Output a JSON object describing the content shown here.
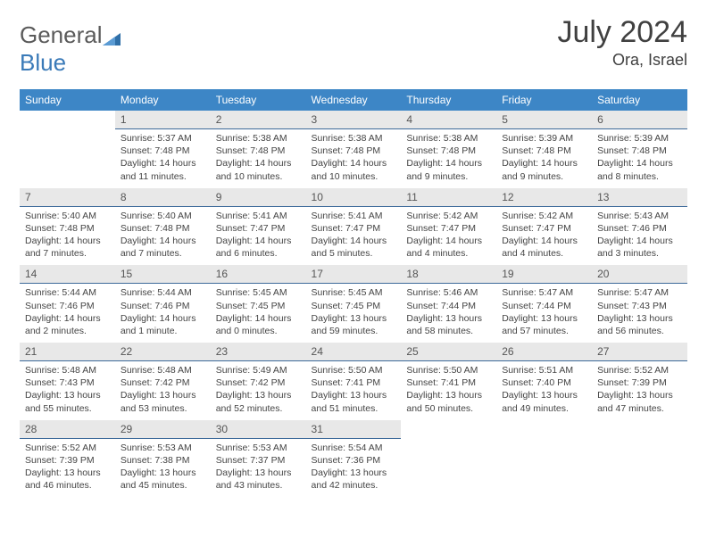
{
  "brand": {
    "part1": "General",
    "part2": "Blue"
  },
  "title": "July 2024",
  "location": "Ora, Israel",
  "day_headers": [
    "Sunday",
    "Monday",
    "Tuesday",
    "Wednesday",
    "Thursday",
    "Friday",
    "Saturday"
  ],
  "colors": {
    "header_bg": "#3d86c6",
    "header_text": "#ffffff",
    "daynum_bg": "#e8e8e8",
    "daynum_border": "#3d6a9a",
    "text": "#444444",
    "title_text": "#404040"
  },
  "start_offset": 1,
  "days": [
    {
      "n": "1",
      "sunrise": "5:37 AM",
      "sunset": "7:48 PM",
      "daylight": "14 hours and 11 minutes."
    },
    {
      "n": "2",
      "sunrise": "5:38 AM",
      "sunset": "7:48 PM",
      "daylight": "14 hours and 10 minutes."
    },
    {
      "n": "3",
      "sunrise": "5:38 AM",
      "sunset": "7:48 PM",
      "daylight": "14 hours and 10 minutes."
    },
    {
      "n": "4",
      "sunrise": "5:38 AM",
      "sunset": "7:48 PM",
      "daylight": "14 hours and 9 minutes."
    },
    {
      "n": "5",
      "sunrise": "5:39 AM",
      "sunset": "7:48 PM",
      "daylight": "14 hours and 9 minutes."
    },
    {
      "n": "6",
      "sunrise": "5:39 AM",
      "sunset": "7:48 PM",
      "daylight": "14 hours and 8 minutes."
    },
    {
      "n": "7",
      "sunrise": "5:40 AM",
      "sunset": "7:48 PM",
      "daylight": "14 hours and 7 minutes."
    },
    {
      "n": "8",
      "sunrise": "5:40 AM",
      "sunset": "7:48 PM",
      "daylight": "14 hours and 7 minutes."
    },
    {
      "n": "9",
      "sunrise": "5:41 AM",
      "sunset": "7:47 PM",
      "daylight": "14 hours and 6 minutes."
    },
    {
      "n": "10",
      "sunrise": "5:41 AM",
      "sunset": "7:47 PM",
      "daylight": "14 hours and 5 minutes."
    },
    {
      "n": "11",
      "sunrise": "5:42 AM",
      "sunset": "7:47 PM",
      "daylight": "14 hours and 4 minutes."
    },
    {
      "n": "12",
      "sunrise": "5:42 AM",
      "sunset": "7:47 PM",
      "daylight": "14 hours and 4 minutes."
    },
    {
      "n": "13",
      "sunrise": "5:43 AM",
      "sunset": "7:46 PM",
      "daylight": "14 hours and 3 minutes."
    },
    {
      "n": "14",
      "sunrise": "5:44 AM",
      "sunset": "7:46 PM",
      "daylight": "14 hours and 2 minutes."
    },
    {
      "n": "15",
      "sunrise": "5:44 AM",
      "sunset": "7:46 PM",
      "daylight": "14 hours and 1 minute."
    },
    {
      "n": "16",
      "sunrise": "5:45 AM",
      "sunset": "7:45 PM",
      "daylight": "14 hours and 0 minutes."
    },
    {
      "n": "17",
      "sunrise": "5:45 AM",
      "sunset": "7:45 PM",
      "daylight": "13 hours and 59 minutes."
    },
    {
      "n": "18",
      "sunrise": "5:46 AM",
      "sunset": "7:44 PM",
      "daylight": "13 hours and 58 minutes."
    },
    {
      "n": "19",
      "sunrise": "5:47 AM",
      "sunset": "7:44 PM",
      "daylight": "13 hours and 57 minutes."
    },
    {
      "n": "20",
      "sunrise": "5:47 AM",
      "sunset": "7:43 PM",
      "daylight": "13 hours and 56 minutes."
    },
    {
      "n": "21",
      "sunrise": "5:48 AM",
      "sunset": "7:43 PM",
      "daylight": "13 hours and 55 minutes."
    },
    {
      "n": "22",
      "sunrise": "5:48 AM",
      "sunset": "7:42 PM",
      "daylight": "13 hours and 53 minutes."
    },
    {
      "n": "23",
      "sunrise": "5:49 AM",
      "sunset": "7:42 PM",
      "daylight": "13 hours and 52 minutes."
    },
    {
      "n": "24",
      "sunrise": "5:50 AM",
      "sunset": "7:41 PM",
      "daylight": "13 hours and 51 minutes."
    },
    {
      "n": "25",
      "sunrise": "5:50 AM",
      "sunset": "7:41 PM",
      "daylight": "13 hours and 50 minutes."
    },
    {
      "n": "26",
      "sunrise": "5:51 AM",
      "sunset": "7:40 PM",
      "daylight": "13 hours and 49 minutes."
    },
    {
      "n": "27",
      "sunrise": "5:52 AM",
      "sunset": "7:39 PM",
      "daylight": "13 hours and 47 minutes."
    },
    {
      "n": "28",
      "sunrise": "5:52 AM",
      "sunset": "7:39 PM",
      "daylight": "13 hours and 46 minutes."
    },
    {
      "n": "29",
      "sunrise": "5:53 AM",
      "sunset": "7:38 PM",
      "daylight": "13 hours and 45 minutes."
    },
    {
      "n": "30",
      "sunrise": "5:53 AM",
      "sunset": "7:37 PM",
      "daylight": "13 hours and 43 minutes."
    },
    {
      "n": "31",
      "sunrise": "5:54 AM",
      "sunset": "7:36 PM",
      "daylight": "13 hours and 42 minutes."
    }
  ]
}
